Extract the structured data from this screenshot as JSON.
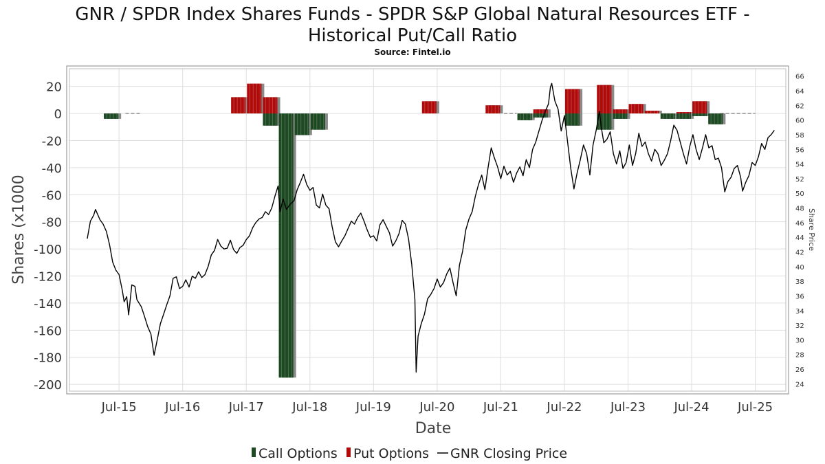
{
  "chart_data": {
    "type": "bar",
    "title_line1": "GNR / SPDR Index Shares Funds - SPDR S&P Global Natural Resources ETF -",
    "title_line2": "Historical Put/Call Ratio",
    "subtitle": "Source: Fintel.io",
    "xlabel": "Date",
    "ylabel": "Shares (x1000",
    "ylabel_right": "Share Price",
    "ylim": [
      -205,
      33
    ],
    "ylim_right": [
      23,
      67
    ],
    "xlim": [
      2014.72,
      2025.98
    ],
    "grid": true,
    "x_ticks": [
      {
        "value": 2015.5,
        "label": "Jul-15"
      },
      {
        "value": 2016.5,
        "label": "Jul-16"
      },
      {
        "value": 2017.5,
        "label": "Jul-17"
      },
      {
        "value": 2018.5,
        "label": "Jul-18"
      },
      {
        "value": 2019.5,
        "label": "Jul-19"
      },
      {
        "value": 2020.5,
        "label": "Jul-20"
      },
      {
        "value": 2021.5,
        "label": "Jul-21"
      },
      {
        "value": 2022.5,
        "label": "Jul-22"
      },
      {
        "value": 2023.5,
        "label": "Jul-23"
      },
      {
        "value": 2024.5,
        "label": "Jul-24"
      },
      {
        "value": 2025.5,
        "label": "Jul-25"
      }
    ],
    "y_ticks": [
      20,
      0,
      -20,
      -40,
      -60,
      -80,
      -100,
      -120,
      -140,
      -160,
      -180,
      -200
    ],
    "y_ticks_right": [
      66,
      64,
      62,
      60,
      58,
      56,
      54,
      52,
      50,
      48,
      46,
      44,
      42,
      40,
      38,
      36,
      34,
      32,
      30,
      28,
      26,
      24
    ],
    "legend": [
      "Call Options",
      "Put Options",
      "GNR Closing Price"
    ],
    "colors": {
      "call": "#1e4a23",
      "put": "#b00b0b",
      "price": "#000000",
      "shadow": "#8a8a8a",
      "grid": "#dddddd"
    },
    "series": [
      {
        "name": "Call Options",
        "bars": [
          {
            "x0": 2015.25,
            "x1": 2015.5,
            "value": -4
          },
          {
            "x0": 2017.75,
            "x1": 2018.0,
            "value": -9
          },
          {
            "x0": 2018.0,
            "x1": 2018.25,
            "value": -195
          },
          {
            "x0": 2018.25,
            "x1": 2018.5,
            "value": -16
          },
          {
            "x0": 2018.5,
            "x1": 2018.75,
            "value": -12
          },
          {
            "x0": 2021.75,
            "x1": 2022.0,
            "value": -5
          },
          {
            "x0": 2022.0,
            "x1": 2022.25,
            "value": -3
          },
          {
            "x0": 2022.5,
            "x1": 2022.75,
            "value": -9
          },
          {
            "x0": 2022.75,
            "x1": 2023.0,
            "value": 0
          },
          {
            "x0": 2023.0,
            "x1": 2023.25,
            "value": -12
          },
          {
            "x0": 2023.25,
            "x1": 2023.5,
            "value": -4
          },
          {
            "x0": 2024.0,
            "x1": 2024.25,
            "value": -4
          },
          {
            "x0": 2024.25,
            "x1": 2024.5,
            "value": -4
          },
          {
            "x0": 2024.5,
            "x1": 2024.75,
            "value": -2
          },
          {
            "x0": 2024.75,
            "x1": 2025.0,
            "value": -8
          }
        ]
      },
      {
        "name": "Put Options",
        "bars": [
          {
            "x0": 2017.25,
            "x1": 2017.5,
            "value": 12
          },
          {
            "x0": 2017.5,
            "x1": 2017.75,
            "value": 22
          },
          {
            "x0": 2017.75,
            "x1": 2018.0,
            "value": 12
          },
          {
            "x0": 2020.25,
            "x1": 2020.5,
            "value": 9
          },
          {
            "x0": 2021.25,
            "x1": 2021.5,
            "value": 6
          },
          {
            "x0": 2022.0,
            "x1": 2022.25,
            "value": 3
          },
          {
            "x0": 2022.5,
            "x1": 2022.75,
            "value": 18
          },
          {
            "x0": 2023.0,
            "x1": 2023.25,
            "value": 21
          },
          {
            "x0": 2023.25,
            "x1": 2023.5,
            "value": 3
          },
          {
            "x0": 2023.5,
            "x1": 2023.75,
            "value": 7
          },
          {
            "x0": 2023.75,
            "x1": 2024.0,
            "value": 2
          },
          {
            "x0": 2024.25,
            "x1": 2024.5,
            "value": 1
          },
          {
            "x0": 2024.5,
            "x1": 2024.75,
            "value": 9
          }
        ]
      },
      {
        "name": "GNR Closing Price",
        "axis": "right",
        "points": [
          [
            2015.0,
            43.8
          ],
          [
            2015.05,
            46.2
          ],
          [
            2015.1,
            47.0
          ],
          [
            2015.13,
            47.8
          ],
          [
            2015.2,
            46.4
          ],
          [
            2015.25,
            45.8
          ],
          [
            2015.3,
            44.8
          ],
          [
            2015.35,
            43.0
          ],
          [
            2015.4,
            40.6
          ],
          [
            2015.45,
            39.5
          ],
          [
            2015.5,
            38.9
          ],
          [
            2015.55,
            36.8
          ],
          [
            2015.58,
            35.2
          ],
          [
            2015.62,
            35.9
          ],
          [
            2015.65,
            33.4
          ],
          [
            2015.7,
            37.5
          ],
          [
            2015.75,
            37.3
          ],
          [
            2015.78,
            35.5
          ],
          [
            2015.85,
            34.5
          ],
          [
            2015.9,
            33.2
          ],
          [
            2015.95,
            31.8
          ],
          [
            2016.0,
            30.8
          ],
          [
            2016.05,
            27.9
          ],
          [
            2016.1,
            30.0
          ],
          [
            2016.15,
            32.2
          ],
          [
            2016.2,
            33.5
          ],
          [
            2016.25,
            34.8
          ],
          [
            2016.3,
            36.0
          ],
          [
            2016.35,
            38.4
          ],
          [
            2016.4,
            38.6
          ],
          [
            2016.45,
            37.0
          ],
          [
            2016.5,
            37.3
          ],
          [
            2016.55,
            38.2
          ],
          [
            2016.6,
            37.2
          ],
          [
            2016.65,
            38.7
          ],
          [
            2016.7,
            38.4
          ],
          [
            2016.75,
            39.3
          ],
          [
            2016.8,
            38.5
          ],
          [
            2016.85,
            38.9
          ],
          [
            2016.9,
            40.0
          ],
          [
            2016.95,
            41.6
          ],
          [
            2017.0,
            42.2
          ],
          [
            2017.05,
            43.7
          ],
          [
            2017.1,
            42.8
          ],
          [
            2017.15,
            42.4
          ],
          [
            2017.2,
            42.5
          ],
          [
            2017.25,
            43.6
          ],
          [
            2017.3,
            42.3
          ],
          [
            2017.35,
            41.8
          ],
          [
            2017.4,
            42.6
          ],
          [
            2017.45,
            42.9
          ],
          [
            2017.5,
            43.7
          ],
          [
            2017.55,
            44.2
          ],
          [
            2017.6,
            45.3
          ],
          [
            2017.65,
            46.0
          ],
          [
            2017.7,
            46.5
          ],
          [
            2017.75,
            46.7
          ],
          [
            2017.8,
            47.5
          ],
          [
            2017.85,
            47.1
          ],
          [
            2017.9,
            48.0
          ],
          [
            2017.95,
            49.6
          ],
          [
            2018.0,
            51.0
          ],
          [
            2018.03,
            47.5
          ],
          [
            2018.08,
            49.2
          ],
          [
            2018.13,
            47.8
          ],
          [
            2018.18,
            48.4
          ],
          [
            2018.25,
            49.0
          ],
          [
            2018.3,
            50.5
          ],
          [
            2018.35,
            51.5
          ],
          [
            2018.4,
            52.6
          ],
          [
            2018.45,
            51.2
          ],
          [
            2018.5,
            50.4
          ],
          [
            2018.55,
            50.8
          ],
          [
            2018.6,
            48.4
          ],
          [
            2018.65,
            48.0
          ],
          [
            2018.7,
            49.9
          ],
          [
            2018.75,
            48.4
          ],
          [
            2018.8,
            47.9
          ],
          [
            2018.85,
            45.4
          ],
          [
            2018.9,
            43.4
          ],
          [
            2018.95,
            42.7
          ],
          [
            2019.0,
            43.5
          ],
          [
            2019.05,
            44.2
          ],
          [
            2019.1,
            45.2
          ],
          [
            2019.15,
            46.2
          ],
          [
            2019.2,
            45.8
          ],
          [
            2019.25,
            46.7
          ],
          [
            2019.3,
            47.3
          ],
          [
            2019.35,
            46.2
          ],
          [
            2019.4,
            45.0
          ],
          [
            2019.45,
            44.0
          ],
          [
            2019.5,
            44.2
          ],
          [
            2019.55,
            43.5
          ],
          [
            2019.6,
            45.7
          ],
          [
            2019.65,
            46.4
          ],
          [
            2019.7,
            45.5
          ],
          [
            2019.75,
            44.6
          ],
          [
            2019.8,
            42.8
          ],
          [
            2019.85,
            43.5
          ],
          [
            2019.9,
            44.5
          ],
          [
            2019.95,
            46.3
          ],
          [
            2020.0,
            45.8
          ],
          [
            2020.05,
            43.8
          ],
          [
            2020.1,
            40.3
          ],
          [
            2020.15,
            35.5
          ],
          [
            2020.17,
            25.6
          ],
          [
            2020.2,
            30.5
          ],
          [
            2020.25,
            32.2
          ],
          [
            2020.3,
            33.5
          ],
          [
            2020.35,
            35.6
          ],
          [
            2020.4,
            36.2
          ],
          [
            2020.45,
            37.0
          ],
          [
            2020.5,
            38.3
          ],
          [
            2020.55,
            37.2
          ],
          [
            2020.6,
            37.8
          ],
          [
            2020.65,
            39.0
          ],
          [
            2020.7,
            39.8
          ],
          [
            2020.75,
            37.8
          ],
          [
            2020.8,
            36.0
          ],
          [
            2020.85,
            40.2
          ],
          [
            2020.9,
            42.1
          ],
          [
            2020.95,
            45.0
          ],
          [
            2021.0,
            46.5
          ],
          [
            2021.05,
            47.5
          ],
          [
            2021.1,
            49.6
          ],
          [
            2021.15,
            51.2
          ],
          [
            2021.2,
            52.5
          ],
          [
            2021.25,
            50.5
          ],
          [
            2021.3,
            53.5
          ],
          [
            2021.35,
            56.2
          ],
          [
            2021.4,
            54.8
          ],
          [
            2021.45,
            53.6
          ],
          [
            2021.5,
            52.0
          ],
          [
            2021.55,
            53.7
          ],
          [
            2021.6,
            52.5
          ],
          [
            2021.65,
            53.0
          ],
          [
            2021.7,
            51.5
          ],
          [
            2021.75,
            52.8
          ],
          [
            2021.8,
            53.6
          ],
          [
            2021.85,
            52.4
          ],
          [
            2021.9,
            54.6
          ],
          [
            2021.95,
            53.5
          ],
          [
            2022.0,
            56.0
          ],
          [
            2022.05,
            57.0
          ],
          [
            2022.1,
            58.5
          ],
          [
            2022.15,
            60.0
          ],
          [
            2022.2,
            61.2
          ],
          [
            2022.25,
            62.2
          ],
          [
            2022.28,
            64.5
          ],
          [
            2022.3,
            65.0
          ],
          [
            2022.35,
            62.6
          ],
          [
            2022.4,
            61.5
          ],
          [
            2022.45,
            58.5
          ],
          [
            2022.5,
            60.6
          ],
          [
            2022.55,
            57.0
          ],
          [
            2022.6,
            53.4
          ],
          [
            2022.65,
            50.6
          ],
          [
            2022.7,
            52.8
          ],
          [
            2022.75,
            54.6
          ],
          [
            2022.8,
            56.6
          ],
          [
            2022.85,
            55.4
          ],
          [
            2022.9,
            52.5
          ],
          [
            2022.95,
            56.6
          ],
          [
            2023.0,
            58.6
          ],
          [
            2023.05,
            61.2
          ],
          [
            2023.08,
            59.0
          ],
          [
            2023.12,
            56.9
          ],
          [
            2023.17,
            57.4
          ],
          [
            2023.22,
            58.4
          ],
          [
            2023.27,
            55.4
          ],
          [
            2023.32,
            54.0
          ],
          [
            2023.37,
            55.8
          ],
          [
            2023.42,
            53.4
          ],
          [
            2023.47,
            54.2
          ],
          [
            2023.52,
            56.6
          ],
          [
            2023.57,
            53.8
          ],
          [
            2023.62,
            55.4
          ],
          [
            2023.67,
            58.2
          ],
          [
            2023.72,
            56.4
          ],
          [
            2023.77,
            57.0
          ],
          [
            2023.82,
            55.4
          ],
          [
            2023.87,
            54.4
          ],
          [
            2023.92,
            56.0
          ],
          [
            2023.97,
            55.4
          ],
          [
            2024.02,
            53.8
          ],
          [
            2024.07,
            54.5
          ],
          [
            2024.12,
            55.4
          ],
          [
            2024.17,
            57.2
          ],
          [
            2024.22,
            59.3
          ],
          [
            2024.27,
            58.6
          ],
          [
            2024.32,
            57.0
          ],
          [
            2024.37,
            55.4
          ],
          [
            2024.42,
            54.0
          ],
          [
            2024.47,
            56.4
          ],
          [
            2024.52,
            58.0
          ],
          [
            2024.57,
            56.0
          ],
          [
            2024.62,
            54.6
          ],
          [
            2024.67,
            56.2
          ],
          [
            2024.72,
            58.0
          ],
          [
            2024.77,
            56.2
          ],
          [
            2024.82,
            56.5
          ],
          [
            2024.87,
            54.6
          ],
          [
            2024.92,
            54.8
          ],
          [
            2024.97,
            53.5
          ],
          [
            2025.02,
            50.2
          ],
          [
            2025.07,
            51.6
          ],
          [
            2025.12,
            52.2
          ],
          [
            2025.17,
            53.4
          ],
          [
            2025.22,
            53.8
          ],
          [
            2025.27,
            52.2
          ],
          [
            2025.3,
            50.3
          ],
          [
            2025.35,
            51.5
          ],
          [
            2025.4,
            52.4
          ],
          [
            2025.45,
            54.2
          ],
          [
            2025.5,
            53.8
          ],
          [
            2025.55,
            55.0
          ],
          [
            2025.6,
            56.8
          ],
          [
            2025.65,
            56.0
          ],
          [
            2025.7,
            57.6
          ],
          [
            2025.75,
            58.0
          ],
          [
            2025.8,
            58.6
          ]
        ]
      }
    ]
  }
}
